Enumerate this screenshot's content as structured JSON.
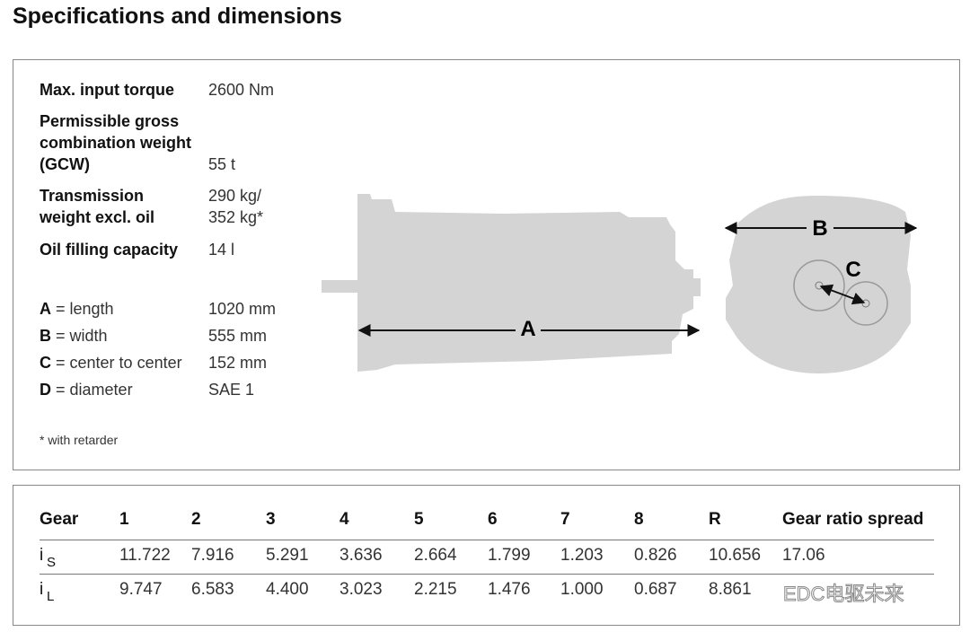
{
  "title": "Specifications and dimensions",
  "specs": [
    {
      "label": [
        "Max. input torque"
      ],
      "value": [
        "2600 Nm"
      ]
    },
    {
      "label": [
        "Permissible gross",
        "combination weight",
        "(GCW)"
      ],
      "value": [
        "55 t"
      ]
    },
    {
      "label": [
        "Transmission",
        "weight excl. oil"
      ],
      "value": [
        "290 kg/",
        "352 kg*"
      ]
    },
    {
      "label": [
        "Oil filling capacity"
      ],
      "value": [
        "14 l"
      ]
    }
  ],
  "dimensions": [
    {
      "letter": "A",
      "label": "= length",
      "value": "1020 mm"
    },
    {
      "letter": "B",
      "label": "= width",
      "value": "555 mm"
    },
    {
      "letter": "C",
      "label": "= center to center",
      "value": "152 mm"
    },
    {
      "letter": "D",
      "label": "= diameter",
      "value": "SAE 1"
    }
  ],
  "footnote": "* with retarder",
  "diagram": {
    "length_label": "A",
    "width_label": "B",
    "center_label": "C"
  },
  "table": {
    "header": [
      "Gear",
      "1",
      "2",
      "3",
      "4",
      "5",
      "6",
      "7",
      "8",
      "R",
      "Gear ratio spread"
    ],
    "rows": [
      {
        "symbol": "i",
        "subscript": "S",
        "values": [
          "11.722",
          "7.916",
          "5.291",
          "3.636",
          "2.664",
          "1.799",
          "1.203",
          "0.826",
          "10.656",
          "17.06"
        ]
      },
      {
        "symbol": "i",
        "subscript": "L",
        "values": [
          "9.747",
          "6.583",
          "4.400",
          "3.023",
          "2.215",
          "1.476",
          "1.000",
          "0.687",
          "8.861"
        ]
      }
    ]
  },
  "watermark": "EDC电驱未来"
}
